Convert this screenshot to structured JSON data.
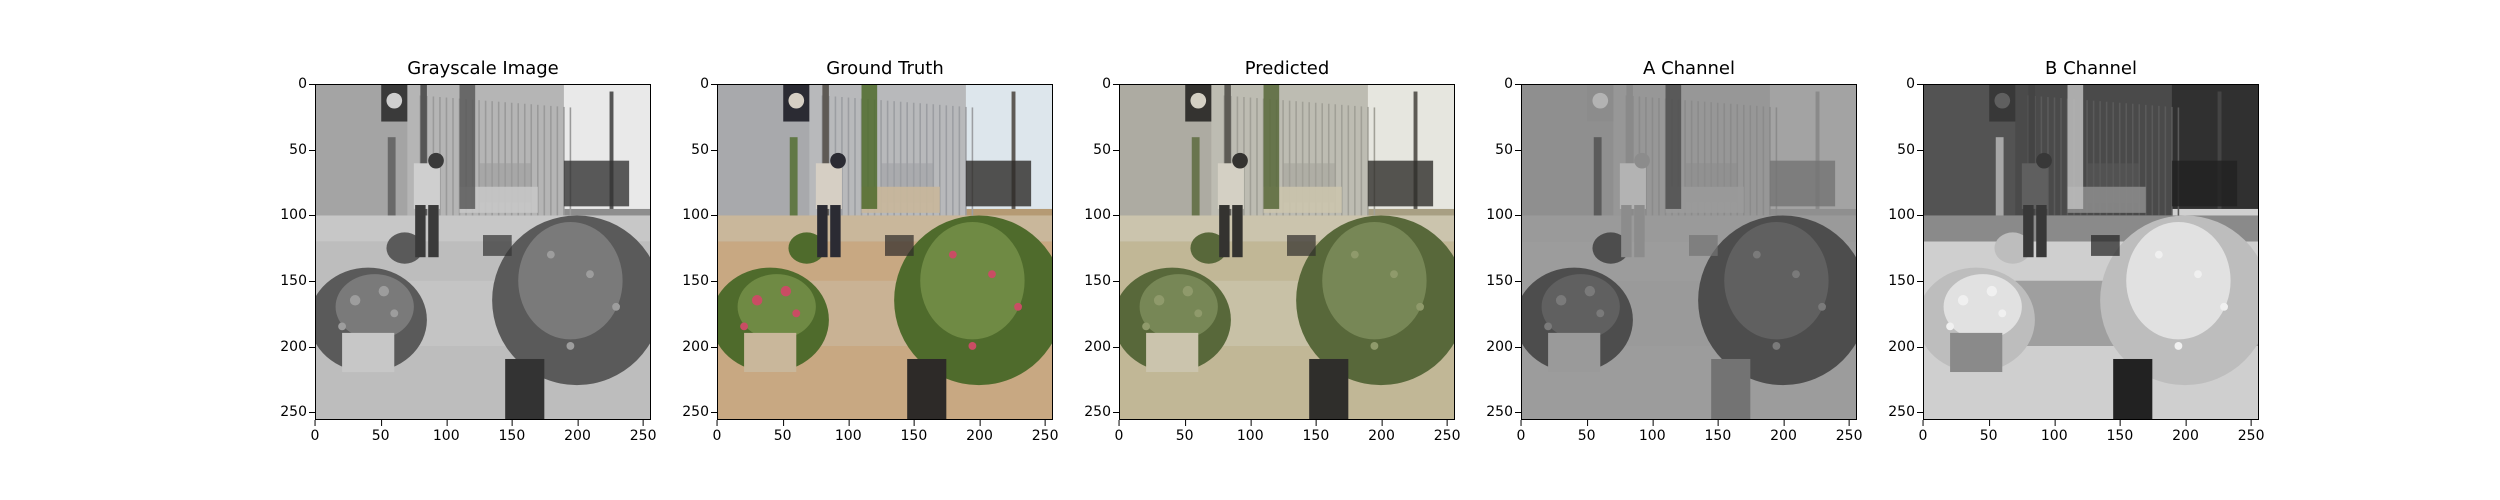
{
  "panels": [
    {
      "title": "Grayscale Image",
      "mode": "gray"
    },
    {
      "title": "Ground Truth",
      "mode": "color"
    },
    {
      "title": "Predicted",
      "mode": "pred"
    },
    {
      "title": "A Channel",
      "mode": "a"
    },
    {
      "title": "B Channel",
      "mode": "b"
    }
  ],
  "axes": {
    "y_ticks": [
      "0",
      "50",
      "100",
      "150",
      "200",
      "250"
    ],
    "x_ticks": [
      "0",
      "50",
      "100",
      "150",
      "200",
      "250"
    ],
    "y_values": [
      0,
      50,
      100,
      150,
      200,
      250
    ],
    "x_values": [
      0,
      50,
      100,
      150,
      200,
      250
    ],
    "range": [
      0,
      256
    ]
  }
}
